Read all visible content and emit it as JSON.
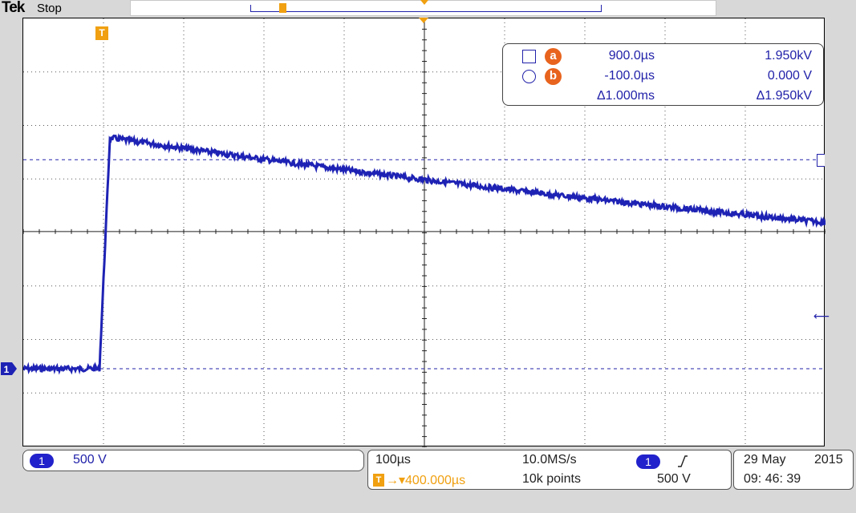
{
  "header": {
    "brand": "Tek",
    "acq_state": "Stop"
  },
  "colors": {
    "ch1": "#1e22b4",
    "trigger": "#f0a010",
    "cursor_badge": "#e8641e",
    "grid": "#555555"
  },
  "markers": {
    "trigger_position": "T",
    "ch1_ground": "1"
  },
  "cursors": {
    "a": {
      "badge": "a",
      "time": "900.0µs",
      "volt": "1.950kV"
    },
    "b": {
      "badge": "b",
      "time": "-100.0µs",
      "volt": "0.000 V"
    },
    "delta": {
      "time": "Δ1.000ms",
      "volt": "Δ1.950kV"
    }
  },
  "channel": {
    "badge": "1",
    "scale": "500 V"
  },
  "horizontal": {
    "time_per_div": "100µs",
    "sample_rate": "10.0MS/s",
    "trigger_delay": "→▾400.000µs",
    "trigger_delay_icon": "T",
    "record_length": "10k points",
    "trigger_source": "1",
    "trigger_level": "500 V"
  },
  "datetime": {
    "day": "29 May",
    "year": "2015",
    "time": "09: 46: 39"
  },
  "waveform": {
    "time_per_div_us": 100,
    "volts_per_div": 500,
    "baseline_v": 0,
    "rise_time_us": 0,
    "rise_duration_us": 8,
    "peak_v": 2150,
    "cursor_a": {
      "t_us": 900,
      "v": 1950
    },
    "cursor_b": {
      "t_us": -100,
      "v": 0
    },
    "end_t_us": 900
  }
}
